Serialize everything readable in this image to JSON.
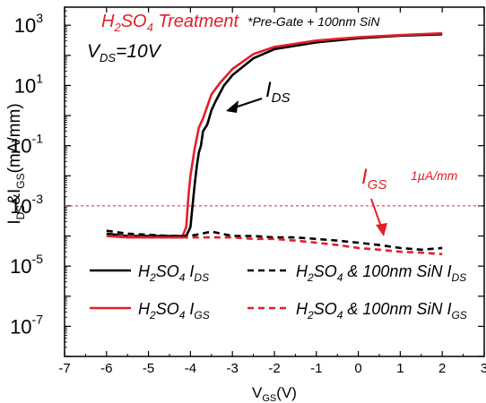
{
  "colors": {
    "black": "#000000",
    "red": "#e0202a"
  },
  "chart_data": {
    "type": "line",
    "xlabel": {
      "main": "V",
      "sub": "GS",
      "tail": "(V)"
    },
    "ylabel": {
      "p1": "I",
      "s1": "DS",
      "p2": "&I",
      "s2": "GS",
      "p3": "(mA/mm)"
    },
    "xlim": [
      -7,
      3
    ],
    "ylim_log10": [
      -8,
      3.6
    ],
    "x_scale": "linear",
    "y_scale": "log",
    "x_ticks": [
      -7,
      -6,
      -5,
      -4,
      -3,
      -2,
      -1,
      0,
      1,
      2,
      3
    ],
    "x_tick_labels": [
      "-7",
      "-6",
      "-5",
      "-4",
      "-3",
      "-2",
      "-1",
      "0",
      "1",
      "2",
      "3"
    ],
    "y_ticks_exp": [
      3,
      1,
      -1,
      -3,
      -5,
      -7
    ],
    "y_tick_labels": [
      {
        "base": "10",
        "exp": "3"
      },
      {
        "base": "10",
        "exp": "1"
      },
      {
        "base": "10",
        "exp": "-1"
      },
      {
        "base": "10",
        "exp": "-3"
      },
      {
        "base": "10",
        "exp": "-5"
      },
      {
        "base": "10",
        "exp": "-7"
      }
    ],
    "annotations": {
      "title": {
        "part1": "H",
        "sub": "2",
        "part2": "SO",
        "sub2": "4",
        "part3": " Treatment"
      },
      "subtitle": "*Pre-Gate + 100nm SiN",
      "vds": {
        "main": "V",
        "sub": "DS",
        "tail": "=10V"
      },
      "ids_label": {
        "main": "I",
        "sub": "DS"
      },
      "igs_label": {
        "main": "I",
        "sub": "GS"
      },
      "ref_label": "1µA/mm",
      "ref_level": 0.001
    },
    "legend": {
      "placement": "bottom",
      "entries": [
        {
          "prefix": "H",
          "s1": "2",
          "mid": "SO",
          "s2": "4",
          "sym": " I",
          "s3": "DS",
          "color": "#000000",
          "dash": false
        },
        {
          "prefix": "H",
          "s1": "2",
          "mid": "SO",
          "s2": "4",
          "sym": " & 100nm SiN I",
          "s3": "DS",
          "color": "#000000",
          "dash": true
        },
        {
          "prefix": "H",
          "s1": "2",
          "mid": "SO",
          "s2": "4",
          "sym": " I",
          "s3": "GS",
          "color": "#e0202a",
          "dash": false
        },
        {
          "prefix": "H",
          "s1": "2",
          "mid": "SO",
          "s2": "4",
          "sym": " & 100nm SiN I",
          "s3": "GS",
          "color": "#e0202a",
          "dash": true
        }
      ]
    },
    "series": [
      {
        "name": "H2SO4 IDS",
        "color": "#000000",
        "dash": false,
        "points": [
          [
            -6,
            0.00012
          ],
          [
            -5.5,
            0.0001
          ],
          [
            -5,
            0.0001
          ],
          [
            -4.5,
            0.0001
          ],
          [
            -4.1,
            0.0001
          ],
          [
            -4.0,
            0.0002
          ],
          [
            -3.95,
            0.001
          ],
          [
            -3.9,
            0.005
          ],
          [
            -3.85,
            0.02
          ],
          [
            -3.8,
            0.06
          ],
          [
            -3.75,
            0.1
          ],
          [
            -3.7,
            0.3
          ],
          [
            -3.6,
            0.5
          ],
          [
            -3.5,
            1.5
          ],
          [
            -3.4,
            3
          ],
          [
            -3.2,
            10
          ],
          [
            -3.0,
            22
          ],
          [
            -2.5,
            80
          ],
          [
            -2,
            160
          ],
          [
            -1,
            270
          ],
          [
            0,
            370
          ],
          [
            1,
            450
          ],
          [
            2,
            500
          ]
        ]
      },
      {
        "name": "H2SO4 IGS",
        "color": "#e0202a",
        "dash": false,
        "points": [
          [
            -6,
            0.0001
          ],
          [
            -5.5,
            9e-05
          ],
          [
            -5,
            9e-05
          ],
          [
            -4.5,
            9e-05
          ],
          [
            -4.2,
            9e-05
          ],
          [
            -4.1,
            0.0002
          ],
          [
            -4.05,
            0.002
          ],
          [
            -4.0,
            0.01
          ],
          [
            -3.9,
            0.08
          ],
          [
            -3.8,
            0.4
          ],
          [
            -3.7,
            0.8
          ],
          [
            -3.6,
            2
          ],
          [
            -3.5,
            5
          ],
          [
            -3.3,
            12
          ],
          [
            -3.0,
            35
          ],
          [
            -2.5,
            110
          ],
          [
            -2,
            190
          ],
          [
            -1,
            310
          ],
          [
            0,
            400
          ],
          [
            1,
            470
          ],
          [
            2,
            540
          ]
        ]
      },
      {
        "name": "H2SO4 & 100nm SiN IDS",
        "color": "#000000",
        "dash": true,
        "points": [
          [
            -6,
            0.00015
          ],
          [
            -5.5,
            0.00012
          ],
          [
            -5,
            0.00011
          ],
          [
            -4.5,
            0.0001
          ],
          [
            -4,
            0.0001
          ],
          [
            -3.5,
            0.00014
          ],
          [
            -3,
            0.0001
          ],
          [
            -2.5,
            0.0001
          ],
          [
            -2,
            9e-05
          ],
          [
            -1.5,
            9e-05
          ],
          [
            -1,
            8e-05
          ],
          [
            -0.5,
            7e-05
          ],
          [
            0,
            6e-05
          ],
          [
            0.5,
            5e-05
          ],
          [
            1,
            4e-05
          ],
          [
            1.5,
            3.5e-05
          ],
          [
            2,
            4e-05
          ]
        ]
      },
      {
        "name": "H2SO4 & 100nm SiN IGS",
        "color": "#e0202a",
        "dash": true,
        "points": [
          [
            -6,
            0.0001
          ],
          [
            -5.5,
            0.0001
          ],
          [
            -5,
            9e-05
          ],
          [
            -4.5,
            9e-05
          ],
          [
            -4,
            9e-05
          ],
          [
            -3.5,
            9e-05
          ],
          [
            -3,
            9e-05
          ],
          [
            -2.5,
            8e-05
          ],
          [
            -2,
            8e-05
          ],
          [
            -1.5,
            7e-05
          ],
          [
            -1,
            6e-05
          ],
          [
            -0.5,
            5e-05
          ],
          [
            0,
            4e-05
          ],
          [
            0.5,
            3.5e-05
          ],
          [
            1,
            3e-05
          ],
          [
            1.5,
            2.8e-05
          ],
          [
            2,
            2.5e-05
          ]
        ]
      }
    ]
  }
}
